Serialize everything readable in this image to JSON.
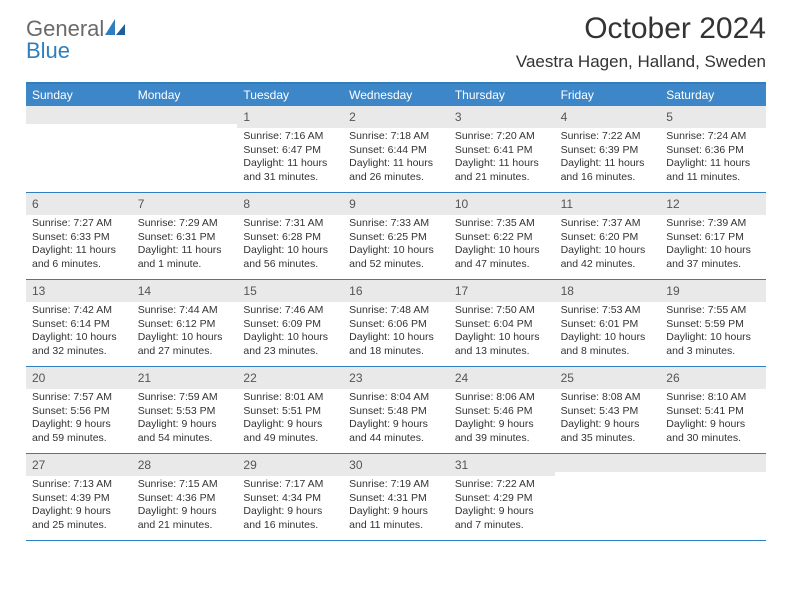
{
  "brand": {
    "text1": "General",
    "text2": "Blue"
  },
  "title": "October 2024",
  "location": "Vaestra Hagen, Halland, Sweden",
  "colors": {
    "header_bg": "#3D87C9",
    "border": "#2f7fbf",
    "daynum_bg": "#e9e9e9",
    "text": "#333333",
    "logo_gray": "#6a6a6a",
    "logo_blue": "#2f7fbf"
  },
  "dow": [
    "Sunday",
    "Monday",
    "Tuesday",
    "Wednesday",
    "Thursday",
    "Friday",
    "Saturday"
  ],
  "weeks": [
    [
      null,
      null,
      {
        "n": "1",
        "sr": "7:16 AM",
        "ss": "6:47 PM",
        "dl": "11 hours and 31 minutes."
      },
      {
        "n": "2",
        "sr": "7:18 AM",
        "ss": "6:44 PM",
        "dl": "11 hours and 26 minutes."
      },
      {
        "n": "3",
        "sr": "7:20 AM",
        "ss": "6:41 PM",
        "dl": "11 hours and 21 minutes."
      },
      {
        "n": "4",
        "sr": "7:22 AM",
        "ss": "6:39 PM",
        "dl": "11 hours and 16 minutes."
      },
      {
        "n": "5",
        "sr": "7:24 AM",
        "ss": "6:36 PM",
        "dl": "11 hours and 11 minutes."
      }
    ],
    [
      {
        "n": "6",
        "sr": "7:27 AM",
        "ss": "6:33 PM",
        "dl": "11 hours and 6 minutes."
      },
      {
        "n": "7",
        "sr": "7:29 AM",
        "ss": "6:31 PM",
        "dl": "11 hours and 1 minute."
      },
      {
        "n": "8",
        "sr": "7:31 AM",
        "ss": "6:28 PM",
        "dl": "10 hours and 56 minutes."
      },
      {
        "n": "9",
        "sr": "7:33 AM",
        "ss": "6:25 PM",
        "dl": "10 hours and 52 minutes."
      },
      {
        "n": "10",
        "sr": "7:35 AM",
        "ss": "6:22 PM",
        "dl": "10 hours and 47 minutes."
      },
      {
        "n": "11",
        "sr": "7:37 AM",
        "ss": "6:20 PM",
        "dl": "10 hours and 42 minutes."
      },
      {
        "n": "12",
        "sr": "7:39 AM",
        "ss": "6:17 PM",
        "dl": "10 hours and 37 minutes."
      }
    ],
    [
      {
        "n": "13",
        "sr": "7:42 AM",
        "ss": "6:14 PM",
        "dl": "10 hours and 32 minutes."
      },
      {
        "n": "14",
        "sr": "7:44 AM",
        "ss": "6:12 PM",
        "dl": "10 hours and 27 minutes."
      },
      {
        "n": "15",
        "sr": "7:46 AM",
        "ss": "6:09 PM",
        "dl": "10 hours and 23 minutes."
      },
      {
        "n": "16",
        "sr": "7:48 AM",
        "ss": "6:06 PM",
        "dl": "10 hours and 18 minutes."
      },
      {
        "n": "17",
        "sr": "7:50 AM",
        "ss": "6:04 PM",
        "dl": "10 hours and 13 minutes."
      },
      {
        "n": "18",
        "sr": "7:53 AM",
        "ss": "6:01 PM",
        "dl": "10 hours and 8 minutes."
      },
      {
        "n": "19",
        "sr": "7:55 AM",
        "ss": "5:59 PM",
        "dl": "10 hours and 3 minutes."
      }
    ],
    [
      {
        "n": "20",
        "sr": "7:57 AM",
        "ss": "5:56 PM",
        "dl": "9 hours and 59 minutes."
      },
      {
        "n": "21",
        "sr": "7:59 AM",
        "ss": "5:53 PM",
        "dl": "9 hours and 54 minutes."
      },
      {
        "n": "22",
        "sr": "8:01 AM",
        "ss": "5:51 PM",
        "dl": "9 hours and 49 minutes."
      },
      {
        "n": "23",
        "sr": "8:04 AM",
        "ss": "5:48 PM",
        "dl": "9 hours and 44 minutes."
      },
      {
        "n": "24",
        "sr": "8:06 AM",
        "ss": "5:46 PM",
        "dl": "9 hours and 39 minutes."
      },
      {
        "n": "25",
        "sr": "8:08 AM",
        "ss": "5:43 PM",
        "dl": "9 hours and 35 minutes."
      },
      {
        "n": "26",
        "sr": "8:10 AM",
        "ss": "5:41 PM",
        "dl": "9 hours and 30 minutes."
      }
    ],
    [
      {
        "n": "27",
        "sr": "7:13 AM",
        "ss": "4:39 PM",
        "dl": "9 hours and 25 minutes."
      },
      {
        "n": "28",
        "sr": "7:15 AM",
        "ss": "4:36 PM",
        "dl": "9 hours and 21 minutes."
      },
      {
        "n": "29",
        "sr": "7:17 AM",
        "ss": "4:34 PM",
        "dl": "9 hours and 16 minutes."
      },
      {
        "n": "30",
        "sr": "7:19 AM",
        "ss": "4:31 PM",
        "dl": "9 hours and 11 minutes."
      },
      {
        "n": "31",
        "sr": "7:22 AM",
        "ss": "4:29 PM",
        "dl": "9 hours and 7 minutes."
      },
      null,
      null
    ]
  ],
  "labels": {
    "sunrise": "Sunrise:",
    "sunset": "Sunset:",
    "daylight": "Daylight:"
  }
}
